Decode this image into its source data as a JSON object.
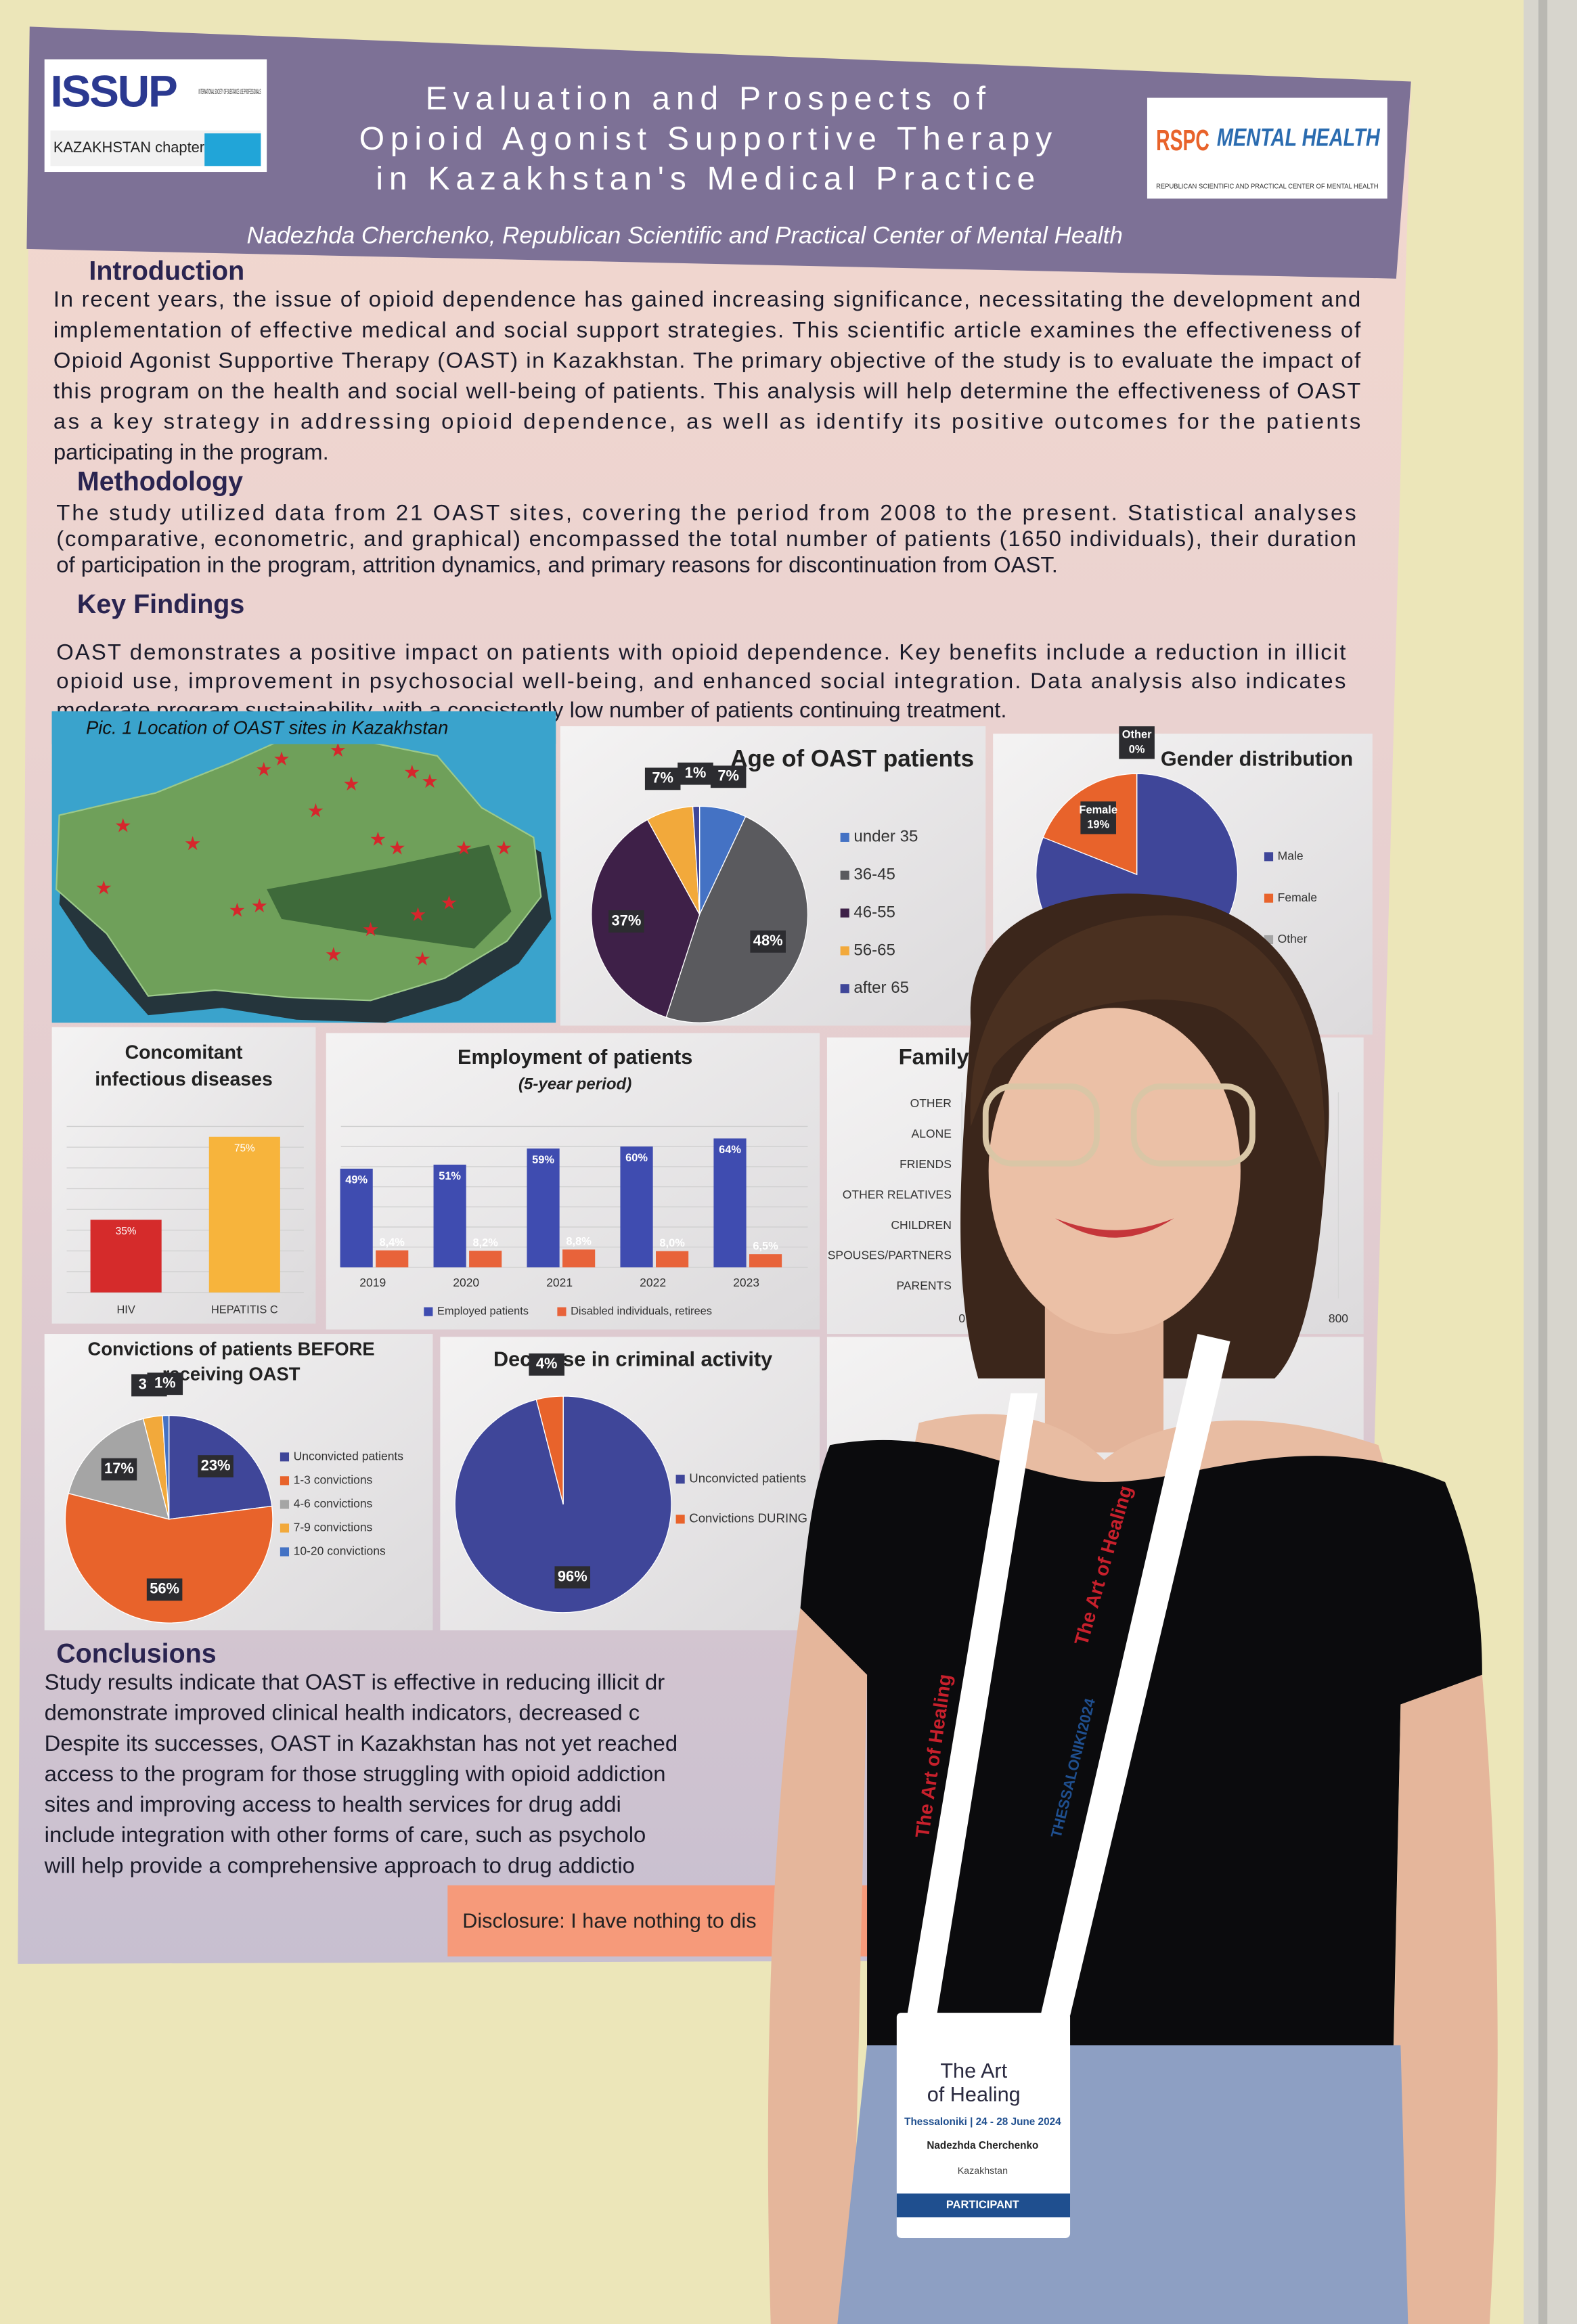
{
  "header": {
    "logo_left": {
      "name": "ISSUP",
      "subtitle": "INTERNATIONAL SOCIETY OF SUBSTANCE USE PROFESSIONALS",
      "chapter": "KAZAKHSTAN chapter"
    },
    "title_lines": [
      "Evaluation and Prospects of",
      "Opioid Agonist Supportive Therapy",
      "in Kazakhstan's Medical Practice"
    ],
    "author": "Nadezhda Cherchenko, Republican Scientific and Practical Center of Mental Health",
    "logo_right": {
      "mark": "RSPC",
      "name": "MENTAL HEALTH",
      "subtitle": "REPUBLICAN SCIENTIFIC AND PRACTICAL CENTER OF MENTAL HEALTH"
    }
  },
  "sections": [
    {
      "heading": "Introduction",
      "lines": [
        "In recent years, the issue of opioid dependence has gained increasing significance, necessitating the development and",
        "implementation of effective medical and social support strategies. This scientific article examines the effectiveness of",
        "Opioid Agonist Supportive Therapy (OAST) in Kazakhstan. The primary objective of the study is to evaluate the impact of",
        "this program on the health and social well-being of patients. This analysis will help determine the effectiveness of OAST",
        "as a key strategy in addressing opioid dependence, as well as identify its positive outcomes for the patients",
        "participating in the program."
      ]
    },
    {
      "heading": "Methodology",
      "lines": [
        "The study utilized data from 21 OAST sites, covering the period from 2008 to the present. Statistical analyses",
        "(comparative, econometric, and graphical) encompassed the total number of patients (1650 individuals), their duration",
        "of participation in the program, attrition dynamics, and primary reasons for discontinuation from OAST."
      ]
    },
    {
      "heading": "Key Findings",
      "lines": [
        "OAST demonstrates a positive impact on patients with opioid dependence. Key benefits include a reduction in illicit",
        "opioid use, improvement in psychosocial well-being, and enhanced social integration. Data analysis also indicates",
        "moderate program sustainability, with a consistently low number of patients continuing treatment."
      ]
    },
    {
      "heading": "Conclusions",
      "lines": [
        "Study results indicate that OAST is effective in reducing illicit dr",
        "demonstrate improved clinical health indicators, decreased c",
        "Despite its successes, OAST in Kazakhstan has not yet reached",
        "access to the program for those struggling with opioid addiction",
        "sites and improving access to health services for drug addi",
        "include integration with other forms of care, such as psycholo",
        "will help provide a comprehensive approach to drug addictio"
      ]
    }
  ],
  "map_caption": "Pic. 1 Location of OAST sites in Kazakhstan",
  "charts": [
    {
      "type": "pie",
      "title_lines": [
        "Age of OAST patients"
      ],
      "categories": [
        "under 35",
        "36-45",
        "46-55",
        "56-65",
        "after 65"
      ],
      "values": [
        7,
        48,
        37,
        7,
        1
      ],
      "value_labels": [
        "7%",
        "48%",
        "37%",
        "7%",
        "1%"
      ],
      "colors": [
        "#4472c4",
        "#5a5a5e",
        "#3e2048",
        "#f2a93b",
        "#3f4699"
      ]
    },
    {
      "type": "pie",
      "title_lines": [
        "Gender distribution"
      ],
      "categories": [
        "Male",
        "Female",
        "Other"
      ],
      "values": [
        81,
        19,
        0
      ],
      "value_labels": [
        null,
        "19%",
        "0%"
      ],
      "colors": [
        "#3f4699",
        "#e8632b",
        "#a5a5a5"
      ]
    },
    {
      "type": "bar",
      "title_lines": [
        "Concomitant",
        "infectious diseases"
      ],
      "categories": [
        "HIV",
        "HEPATITIS C"
      ],
      "values": [
        35,
        75
      ],
      "value_labels": [
        "35%",
        "75%"
      ],
      "colors": [
        "#d52b2b",
        "#f7b43c"
      ],
      "ylim": [
        0,
        80
      ],
      "grid": true
    },
    {
      "type": "groupbar",
      "title_lines": [
        "Employment of patients"
      ],
      "subtitle": "(5-year period)",
      "categories": [
        "2019",
        "2020",
        "2021",
        "2022",
        "2023"
      ],
      "series": [
        {
          "name": "Employed patients",
          "color": "#3f4cb0",
          "values": [
            49,
            51,
            59,
            60,
            64
          ],
          "value_labels": [
            "49%",
            "51%",
            "59%",
            "60%",
            "64%"
          ]
        },
        {
          "name": "Disabled individuals, retirees",
          "color": "#e8633a",
          "values": [
            8.4,
            8.2,
            8.8,
            8.0,
            6.5
          ],
          "value_labels": [
            "8,4%",
            "8,2%",
            "8,8%",
            "8,0%",
            "6,5%"
          ]
        }
      ],
      "ylim": [
        0,
        70
      ],
      "grid": true
    },
    {
      "type": "hbar",
      "title_lines": [
        "Family"
      ],
      "categories": [
        "OTHER",
        "ALONE",
        "FRIENDS",
        "OTHER RELATIVES",
        "CHILDREN",
        "SPOUSES/PARTNERS",
        "PARENTS"
      ],
      "xlim": [
        0,
        800
      ],
      "xticks": [
        0,
        800
      ]
    },
    {
      "type": "pie",
      "title_lines": [
        "Convictions of patients BEFORE",
        "receiving OAST"
      ],
      "categories": [
        "Unconvicted patients",
        "1-3 convictions",
        "4-6 convictions",
        "7-9 convictions",
        "10-20 convictions"
      ],
      "values": [
        23,
        56,
        17,
        3,
        1
      ],
      "value_labels": [
        "23%",
        "56%",
        "17%",
        "3%",
        "1%"
      ],
      "colors": [
        "#3f4699",
        "#e8632b",
        "#a5a5a5",
        "#f2a93b",
        "#4472c4"
      ]
    },
    {
      "type": "pie",
      "title_lines": [
        "Decrease in criminal activity"
      ],
      "categories": [
        "Unconvicted patients",
        "Convictions DURING OAST"
      ],
      "values": [
        96,
        4
      ],
      "value_labels": [
        "96%",
        "4%"
      ],
      "colors": [
        "#3f4699",
        "#e8632b"
      ]
    }
  ],
  "disclosure": "Disclosure: I have nothing to dis",
  "badge": {
    "lanyard": "The Art of Healing",
    "event": "THESSALONIKI2024",
    "title_lines": [
      "The Art",
      "of Healing"
    ],
    "dates": "Thessaloniki | 24 - 28 June 2024",
    "name": "Nadezhda Cherchenko",
    "country": "Kazakhstan",
    "role": "PARTICIPANT"
  }
}
